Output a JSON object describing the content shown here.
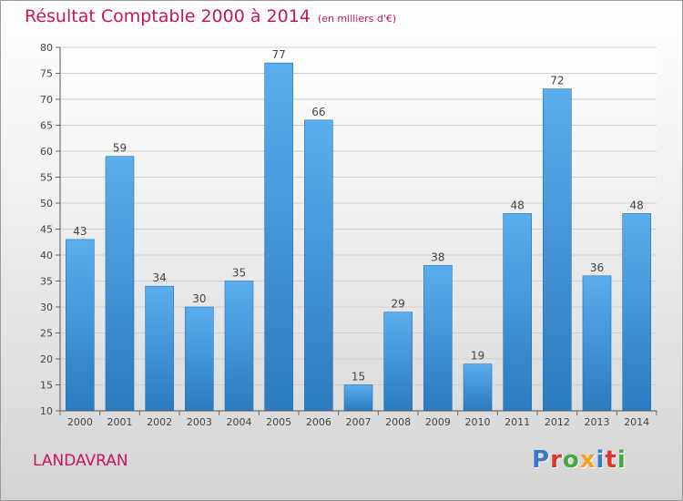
{
  "title": "Résultat Comptable 2000 à 2014",
  "subtitle": "(en milliers d'€)",
  "commune": "LANDAVRAN",
  "brand": "Proxiti",
  "brand_colors": [
    "#3a78c8",
    "#e2342b",
    "#46a843",
    "#f0a21e",
    "#3a78c8",
    "#e2342b",
    "#46a843"
  ],
  "chart_data": {
    "type": "bar",
    "title": "Résultat Comptable 2000 à 2014",
    "subtitle": "(en milliers d'€)",
    "categories": [
      "2000",
      "2001",
      "2002",
      "2003",
      "2004",
      "2005",
      "2006",
      "2007",
      "2008",
      "2009",
      "2010",
      "2011",
      "2012",
      "2013",
      "2014"
    ],
    "values": [
      43,
      59,
      34,
      30,
      35,
      77,
      66,
      15,
      29,
      38,
      19,
      48,
      72,
      36,
      48
    ],
    "ylim": [
      10,
      80
    ],
    "yticks": [
      10,
      15,
      20,
      25,
      30,
      35,
      40,
      45,
      50,
      55,
      60,
      65,
      70,
      75,
      80
    ],
    "xlabel": "",
    "ylabel": "",
    "grid": true,
    "bar_color": "#3a95dd"
  }
}
